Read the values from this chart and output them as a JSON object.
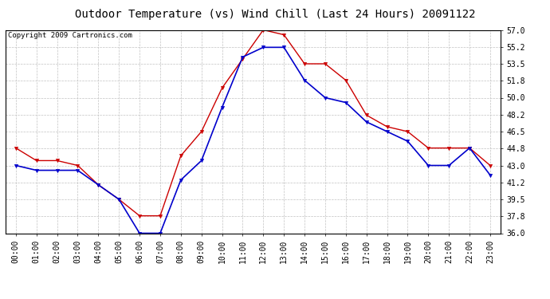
{
  "title": "Outdoor Temperature (vs) Wind Chill (Last 24 Hours) 20091122",
  "copyright": "Copyright 2009 Cartronics.com",
  "hours": [
    "00:00",
    "01:00",
    "02:00",
    "03:00",
    "04:00",
    "05:00",
    "06:00",
    "07:00",
    "08:00",
    "09:00",
    "10:00",
    "11:00",
    "12:00",
    "13:00",
    "14:00",
    "15:00",
    "16:00",
    "17:00",
    "18:00",
    "19:00",
    "20:00",
    "21:00",
    "22:00",
    "23:00"
  ],
  "temp": [
    44.8,
    43.5,
    43.5,
    43.0,
    41.0,
    39.5,
    37.8,
    37.8,
    44.0,
    46.5,
    51.0,
    54.0,
    57.0,
    56.5,
    53.5,
    53.5,
    51.8,
    48.2,
    47.0,
    46.5,
    44.8,
    44.8,
    44.8,
    43.0
  ],
  "windchill": [
    43.0,
    42.5,
    42.5,
    42.5,
    41.0,
    39.5,
    36.0,
    36.0,
    41.5,
    43.5,
    49.0,
    54.2,
    55.2,
    55.2,
    51.8,
    50.0,
    49.5,
    47.5,
    46.5,
    45.5,
    43.0,
    43.0,
    44.8,
    42.0
  ],
  "temp_color": "#cc0000",
  "windchill_color": "#0000cc",
  "ylim_min": 36.0,
  "ylim_max": 57.0,
  "yticks": [
    36.0,
    37.8,
    39.5,
    41.2,
    43.0,
    44.8,
    46.5,
    48.2,
    50.0,
    51.8,
    53.5,
    55.2,
    57.0
  ],
  "bg_color": "#ffffff",
  "plot_bg_color": "#ffffff",
  "grid_color": "#bbbbbb",
  "title_fontsize": 10,
  "tick_fontsize": 7,
  "copyright_fontsize": 6.5
}
